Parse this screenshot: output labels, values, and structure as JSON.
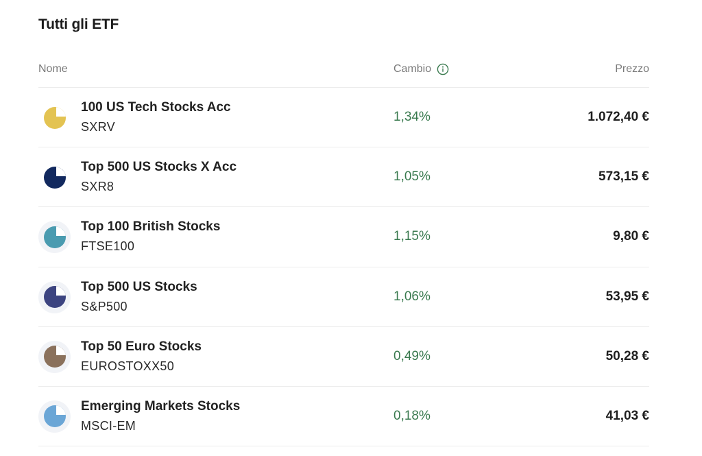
{
  "title": "Tutti gli ETF",
  "columns": {
    "name": "Nome",
    "change": "Cambio",
    "price": "Prezzo"
  },
  "colors": {
    "positive": "#3a7a4f"
  },
  "etfs": [
    {
      "name": "100 US Tech Stocks Acc",
      "ticker": "SXRV",
      "change": "1,34%",
      "price": "1.072,40 €",
      "icon": "pie-chart-icon",
      "color": "#e3c352"
    },
    {
      "name": "Top 500 US Stocks X Acc",
      "ticker": "SXR8",
      "change": "1,05%",
      "price": "573,15 €",
      "icon": "pie-chart-icon",
      "color": "#12295e"
    },
    {
      "name": "Top 100 British Stocks",
      "ticker": "FTSE100",
      "change": "1,15%",
      "price": "9,80 €",
      "icon": "pie-chart-icon",
      "color": "#4a9bb0"
    },
    {
      "name": "Top 500 US Stocks",
      "ticker": "S&P500",
      "change": "1,06%",
      "price": "53,95 €",
      "icon": "pie-chart-icon",
      "color": "#3c4480"
    },
    {
      "name": "Top 50 Euro Stocks",
      "ticker": "EUROSTOXX50",
      "change": "0,49%",
      "price": "50,28 €",
      "icon": "pie-chart-icon",
      "color": "#8a715c"
    },
    {
      "name": "Emerging Markets Stocks",
      "ticker": "MSCI-EM",
      "change": "0,18%",
      "price": "41,03 €",
      "icon": "pie-chart-icon",
      "color": "#6ba6d6"
    }
  ]
}
